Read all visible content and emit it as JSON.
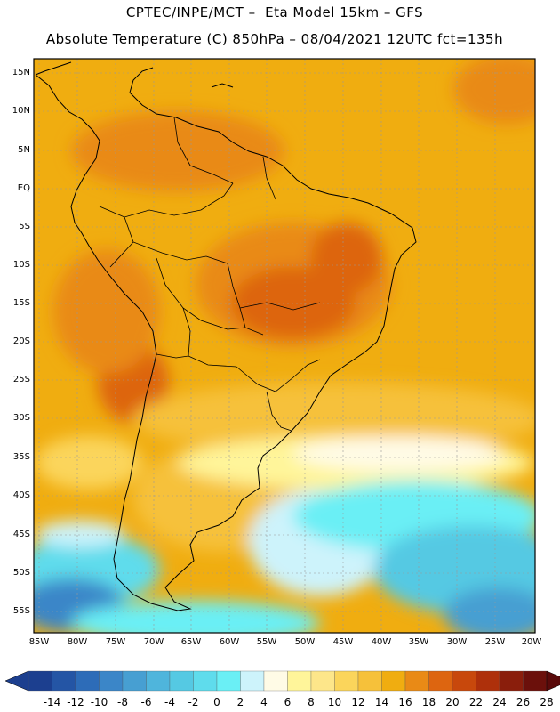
{
  "header": {
    "line1": "CPTEC/INPE/MCT –  Eta Model 15km – GFS",
    "line2": "Absolute Temperature (C) 850hPa – 08/04/2021 12UTC fct=135h"
  },
  "map": {
    "lat_labels": [
      "15N",
      "10N",
      "5N",
      "EQ",
      "5S",
      "10S",
      "15S",
      "20S",
      "25S",
      "30S",
      "35S",
      "40S",
      "45S",
      "50S",
      "55S"
    ],
    "lon_labels": [
      "85W",
      "80W",
      "75W",
      "70W",
      "65W",
      "60W",
      "55W",
      "50W",
      "45W",
      "40W",
      "35W",
      "30W",
      "25W",
      "20W"
    ]
  },
  "colorbar": {
    "labels": [
      "-14",
      "-12",
      "-10",
      "-8",
      "-6",
      "-4",
      "-2",
      "0",
      "2",
      "4",
      "6",
      "8",
      "10",
      "12",
      "14",
      "16",
      "18",
      "20",
      "22",
      "24",
      "26",
      "28"
    ],
    "colors": [
      "#1c3f8f",
      "#2455a5",
      "#2d6cb8",
      "#3b86c8",
      "#479fd2",
      "#4fb5dc",
      "#55c9e3",
      "#5fdcec",
      "#6aeff5",
      "#cdf3fb",
      "#fffbe6",
      "#fff59a",
      "#fde68a",
      "#fbd55b",
      "#f6c13a",
      "#f0ad10",
      "#e98a16",
      "#dd6510",
      "#c8480c",
      "#ae300b",
      "#8a1e0c",
      "#6b100b"
    ]
  }
}
